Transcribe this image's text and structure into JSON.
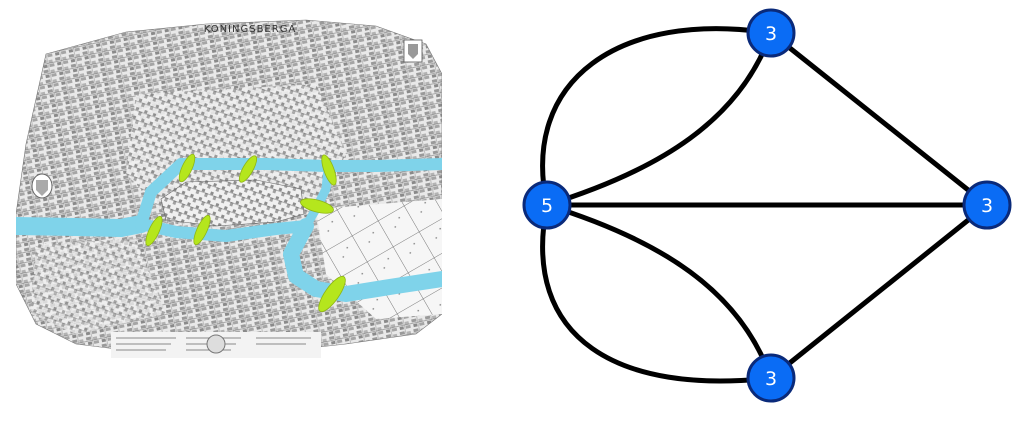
{
  "map": {
    "title": "KONINGSBERGA",
    "river_color": "#7fd3ea",
    "bridge_color": "#b5e61d",
    "bridge_count": 7
  },
  "graph": {
    "node_fill": "#0a6cf5",
    "node_stroke": "#0a2a7a",
    "edge_color": "#000000",
    "nodes": [
      {
        "id": "top",
        "degree": "3"
      },
      {
        "id": "left",
        "degree": "5"
      },
      {
        "id": "right",
        "degree": "3"
      },
      {
        "id": "bottom",
        "degree": "3"
      }
    ]
  }
}
